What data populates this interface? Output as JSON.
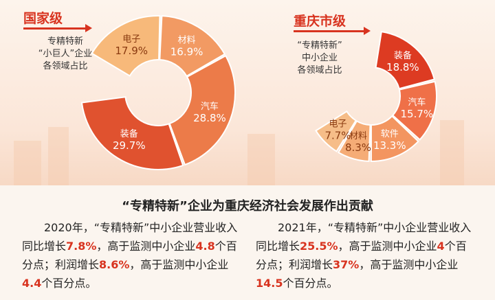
{
  "national": {
    "tag": "国家级",
    "caption": [
      "专精特新",
      "“小巨人”企业",
      "各领域占比"
    ]
  },
  "chongqing": {
    "tag": "重庆市级",
    "caption": [
      "“专精特新”",
      "中小企业",
      "各领域占比"
    ]
  },
  "chart_data": [
    {
      "type": "pie",
      "title": "专精特新“小巨人”企业各领域占比",
      "categories": [
        "电子",
        "材料",
        "汽车",
        "装备"
      ],
      "values": [
        17.9,
        16.9,
        28.8,
        29.7
      ],
      "labels": [
        "17.9%",
        "16.9%",
        "28.8%",
        "29.7%"
      ]
    },
    {
      "type": "pie",
      "title": "“专精特新”中小企业各领域占比",
      "categories": [
        "装备",
        "汽车",
        "软件",
        "材料",
        "电子"
      ],
      "values": [
        18.8,
        15.7,
        13.3,
        8.3,
        7.7
      ],
      "labels": [
        "18.8%",
        "15.7%",
        "13.3%",
        "8.3%",
        "7.7%"
      ]
    }
  ],
  "headline": "“专精特新”企业为重庆经济社会发展作出贡献",
  "para2020": [
    {
      "t": "2020年，“专精特新”中小企业营业收入同比增长",
      "em": false
    },
    {
      "t": "7.8%",
      "em": true
    },
    {
      "t": "，高于监测中小企业",
      "em": false
    },
    {
      "t": "4.8",
      "em": true
    },
    {
      "t": "个百分点；利润增长",
      "em": false
    },
    {
      "t": "8.6%",
      "em": true
    },
    {
      "t": "，高于监测中小企业",
      "em": false
    },
    {
      "t": "4.4",
      "em": true
    },
    {
      "t": "个百分点。",
      "em": false
    }
  ],
  "para2021": [
    {
      "t": "2021年，“专精特新”中小企业营业收入同比增长",
      "em": false
    },
    {
      "t": "25.5%",
      "em": true
    },
    {
      "t": "，高于监测中小企业",
      "em": false
    },
    {
      "t": "4",
      "em": true
    },
    {
      "t": "个百分点；利润增长",
      "em": false
    },
    {
      "t": "37%",
      "em": true
    },
    {
      "t": "，高于监测中小企业",
      "em": false
    },
    {
      "t": "14.5",
      "em": true
    },
    {
      "t": "个百分点。",
      "em": false
    }
  ]
}
